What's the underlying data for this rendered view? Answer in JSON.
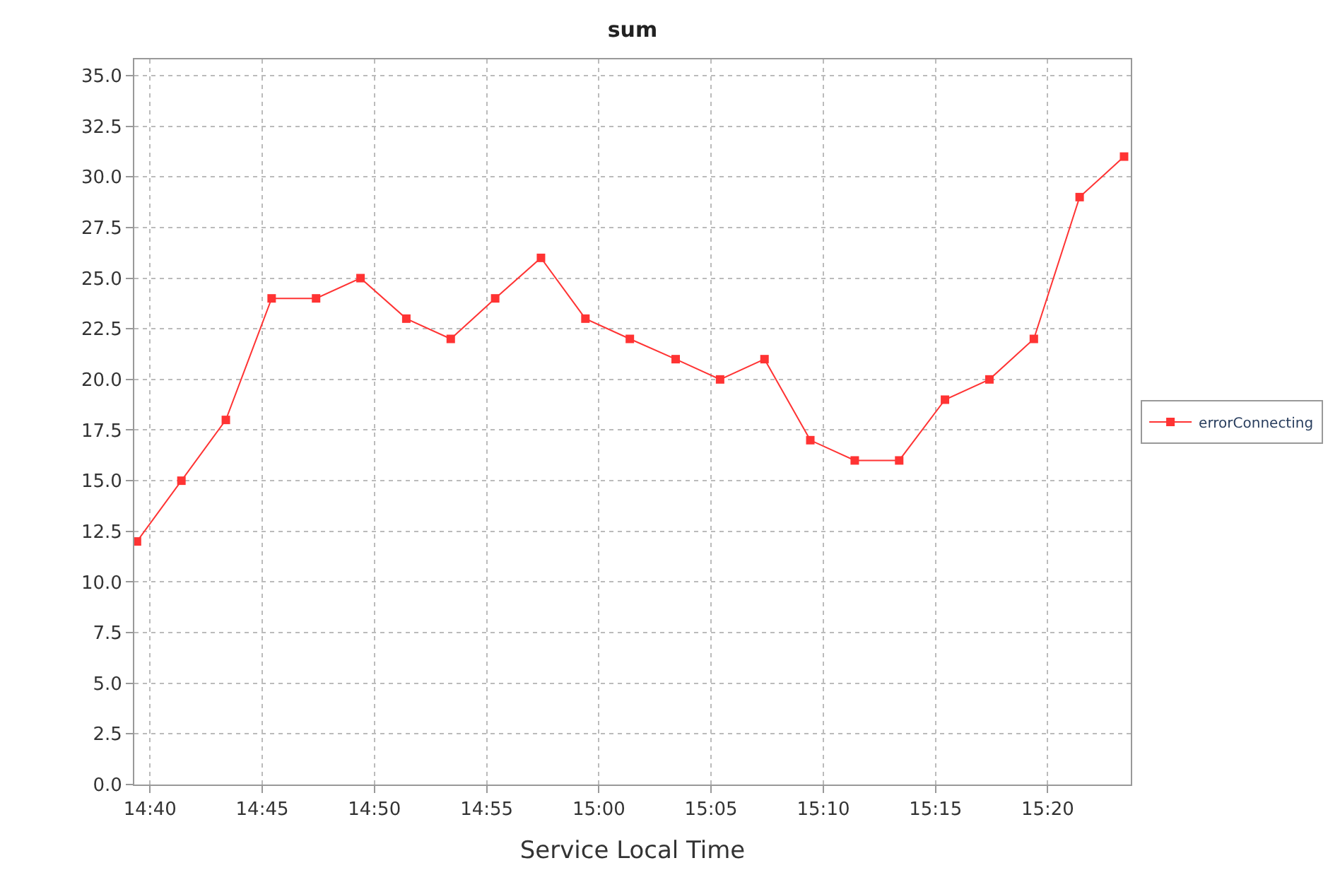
{
  "chart_data": {
    "type": "line",
    "title": "sum",
    "xlabel": "Service Local Time",
    "x": [
      14.657,
      14.69,
      14.723,
      14.757,
      14.79,
      14.823,
      14.857,
      14.89,
      14.923,
      14.957,
      14.99,
      15.023,
      15.057,
      15.09,
      15.123,
      15.157,
      15.19,
      15.223,
      15.257,
      15.29,
      15.323,
      15.357,
      15.39
    ],
    "series": [
      {
        "name": "errorConnecting",
        "color": "#ff3333",
        "values": [
          12,
          15,
          18,
          24,
          24,
          25,
          23,
          22,
          24,
          26,
          23,
          22,
          21,
          20,
          21,
          17,
          16,
          16,
          19,
          20,
          22,
          29,
          31
        ]
      }
    ],
    "xlim": [
      14.655,
      15.395
    ],
    "xticks": [
      {
        "value": 14.6667,
        "label": "14:40"
      },
      {
        "value": 14.75,
        "label": "14:45"
      },
      {
        "value": 14.8333,
        "label": "14:50"
      },
      {
        "value": 14.9167,
        "label": "14:55"
      },
      {
        "value": 15,
        "label": "15:00"
      },
      {
        "value": 15.0833,
        "label": "15:05"
      },
      {
        "value": 15.1667,
        "label": "15:10"
      },
      {
        "value": 15.25,
        "label": "15:15"
      },
      {
        "value": 15.3333,
        "label": "15:20"
      }
    ],
    "ylim": [
      0,
      35.8
    ],
    "yticks": [
      {
        "value": 0,
        "label": "0.0"
      },
      {
        "value": 2.5,
        "label": "2.5"
      },
      {
        "value": 5,
        "label": "5.0"
      },
      {
        "value": 7.5,
        "label": "7.5"
      },
      {
        "value": 10,
        "label": "10.0"
      },
      {
        "value": 12.5,
        "label": "12.5"
      },
      {
        "value": 15,
        "label": "15.0"
      },
      {
        "value": 17.5,
        "label": "17.5"
      },
      {
        "value": 20,
        "label": "20.0"
      },
      {
        "value": 22.5,
        "label": "22.5"
      },
      {
        "value": 25,
        "label": "25.0"
      },
      {
        "value": 27.5,
        "label": "27.5"
      },
      {
        "value": 30,
        "label": "30.0"
      },
      {
        "value": 32.5,
        "label": "32.5"
      },
      {
        "value": 35,
        "label": "35.0"
      }
    ],
    "grid": true,
    "legend": "right",
    "marker": "square",
    "line_style": "solid"
  }
}
